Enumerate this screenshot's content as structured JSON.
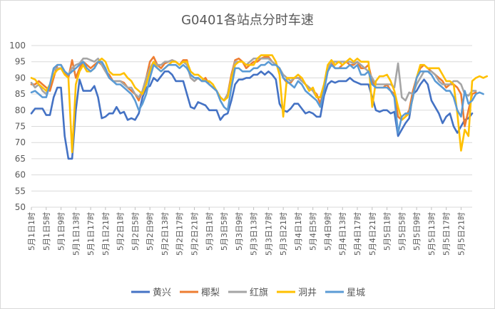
{
  "chart_data": {
    "type": "line",
    "title": "G0401各站点分时车速",
    "xlabel": "",
    "ylabel": "",
    "ylim": [
      50,
      100
    ],
    "y_ticks": [
      50,
      55,
      60,
      65,
      70,
      75,
      80,
      85,
      90,
      95,
      100
    ],
    "grid": "horizontal",
    "legend_position": "bottom",
    "x_tick_labels": [
      "5月1日1时",
      "5月1日5时",
      "5月1日9时",
      "5月1日13时",
      "5月1日17时",
      "5月1日21时",
      "5月2日1时",
      "5月2日5时",
      "5月2日9时",
      "5月2日13时",
      "5月2日17时",
      "5月2日21时",
      "5月3日1时",
      "5月3日5时",
      "5月3日9时",
      "5月3日13时",
      "5月3日17时",
      "5月3日21时",
      "5月4日1时",
      "5月4日5时",
      "5月4日9时",
      "5月4日13时",
      "5月4日17时",
      "5月4日21时",
      "5月5日1时",
      "5月5日5时",
      "5月5日9时",
      "5月5日13时",
      "5月5日17时",
      "5月5日21时"
    ],
    "series": [
      {
        "name": "黄兴",
        "color": "#4472C4",
        "values": [
          79,
          80.5,
          80.5,
          80.5,
          78.5,
          78.5,
          84,
          87,
          87,
          72,
          65,
          65,
          80,
          89.5,
          86,
          86,
          86,
          87.5,
          84,
          77.5,
          78,
          79,
          79,
          81,
          79,
          79.5,
          77,
          77.5,
          77,
          79,
          84,
          87,
          87.5,
          90,
          89,
          90.5,
          92,
          92,
          91,
          89,
          89,
          89,
          85,
          81,
          80.5,
          82.5,
          82,
          81.5,
          80,
          80,
          80,
          77,
          78.5,
          79,
          83,
          88,
          89.5,
          89.5,
          90,
          90,
          91,
          91,
          92,
          91,
          92,
          91,
          89.5,
          82,
          80,
          79.5,
          80.5,
          82,
          82,
          80.5,
          79,
          79.5,
          79,
          78,
          78,
          84.5,
          88,
          89,
          88.5,
          89,
          89,
          89,
          90,
          89,
          88.5,
          88,
          88,
          88,
          84,
          80,
          79.5,
          80,
          80,
          79,
          79.5,
          72,
          74,
          76,
          77.5,
          85,
          86,
          88,
          89.5,
          88,
          83,
          81,
          79,
          76,
          78,
          79,
          75,
          73,
          75,
          77,
          77.5,
          79
        ]
      },
      {
        "name": "椰梨",
        "color": "#ED7D31",
        "values": [
          88,
          88,
          89,
          88,
          87,
          86,
          90,
          94,
          94,
          92,
          90,
          95.5,
          90,
          93,
          95,
          94,
          93,
          94,
          95,
          94,
          92,
          91,
          89,
          89,
          89,
          88.5,
          87,
          86,
          85,
          83,
          86,
          90,
          95,
          96.5,
          94,
          93,
          94.5,
          95,
          95.5,
          95,
          94,
          95.5,
          95.5,
          90,
          89,
          90,
          89,
          90,
          88,
          87,
          86,
          84,
          83,
          85,
          91,
          95.5,
          96,
          95,
          93,
          94,
          95,
          95,
          96,
          96.5,
          96.5,
          95,
          94,
          93,
          90,
          88.5,
          88.5,
          90,
          90,
          90,
          88,
          87,
          86,
          85,
          82,
          87,
          92,
          94.5,
          93,
          93,
          94,
          95,
          94,
          94,
          95,
          93,
          93,
          94,
          89,
          87,
          87,
          87,
          88,
          86,
          85,
          78,
          77,
          78,
          80,
          86,
          90,
          93,
          94,
          93,
          92,
          91,
          90,
          89,
          87,
          88,
          88,
          87,
          85,
          75,
          80,
          85,
          85.5
        ]
      },
      {
        "name": "红旗",
        "color": "#A5A5A5",
        "values": [
          88.5,
          87,
          88,
          86,
          85,
          88,
          92.5,
          93,
          93,
          92,
          91,
          93,
          94,
          94.5,
          96,
          96,
          95.5,
          95,
          96,
          94,
          92,
          90,
          89,
          89,
          89,
          88,
          87,
          87,
          85,
          84,
          86,
          90,
          93,
          95,
          94,
          94,
          95,
          95,
          95.5,
          95,
          94,
          95,
          94,
          90,
          89,
          90,
          89,
          89,
          88,
          87,
          86,
          84,
          83,
          85,
          90,
          95,
          95,
          95,
          94,
          95,
          96,
          96,
          96,
          96,
          96,
          95,
          94,
          93,
          91,
          90,
          89,
          90,
          90,
          89,
          88,
          87,
          86,
          84,
          84,
          88,
          93,
          95,
          95,
          95,
          95,
          95,
          95,
          94.5,
          95,
          94,
          93,
          92,
          90,
          88,
          88,
          88,
          88,
          88,
          87,
          94.5,
          84,
          83,
          85.5,
          85,
          88,
          90,
          92,
          92,
          92,
          91,
          89,
          88,
          88,
          88,
          89,
          89,
          88,
          85,
          84.5,
          86,
          86
        ]
      },
      {
        "name": "洞井",
        "color": "#FFC000",
        "values": [
          90,
          89.5,
          88,
          87,
          86,
          88,
          91,
          92.5,
          93,
          91,
          90,
          67,
          88,
          92,
          94,
          92,
          92,
          93,
          95,
          96,
          95,
          92,
          91,
          91,
          91,
          91.5,
          90,
          89,
          87,
          86,
          85,
          88,
          92,
          95,
          93,
          92,
          93,
          94,
          95,
          95,
          94,
          95,
          95,
          92,
          91,
          91,
          90,
          89,
          89,
          88,
          86,
          84,
          83,
          84,
          90,
          94,
          95,
          95,
          94,
          94,
          94,
          96,
          97,
          97,
          97,
          97,
          95,
          91,
          78,
          90,
          90,
          90,
          91,
          90,
          88,
          86,
          87,
          84,
          84,
          88,
          94,
          95.5,
          94,
          95,
          94,
          95,
          96,
          95,
          96,
          95,
          95,
          95,
          81,
          89,
          90.5,
          90.5,
          91,
          89,
          86,
          81,
          77,
          78,
          79,
          84,
          90,
          94,
          94,
          93,
          93,
          93,
          93,
          91,
          89,
          89,
          88,
          79,
          67.5,
          74,
          72,
          89,
          90,
          90.5,
          90,
          90.5
        ]
      },
      {
        "name": "星城",
        "color": "#5B9BD5",
        "values": [
          85.5,
          86,
          85,
          84,
          84,
          88,
          93,
          94,
          94,
          92,
          91,
          92,
          93,
          94,
          95,
          93,
          92,
          93,
          95,
          95,
          93,
          90,
          89,
          88,
          88,
          87,
          86,
          85,
          83,
          80,
          82,
          85,
          90,
          94,
          93,
          92,
          93,
          94,
          94,
          94,
          93,
          94,
          93,
          91,
          90,
          90,
          89,
          89,
          88,
          87,
          86,
          83,
          81,
          80,
          87,
          93,
          93,
          92,
          92,
          92,
          93,
          93,
          94,
          94,
          95,
          94,
          94,
          93,
          90,
          89,
          88,
          87,
          89,
          88,
          86,
          85,
          84,
          83,
          81,
          86,
          92,
          94,
          93,
          93,
          93,
          93,
          94,
          93,
          94,
          91,
          91,
          92,
          88,
          87,
          87,
          87,
          87,
          86,
          84,
          73,
          78,
          79,
          79,
          84,
          90,
          92,
          92,
          92,
          91,
          89,
          88,
          87,
          86,
          86,
          84,
          80,
          78,
          86,
          82,
          83,
          85,
          85.5,
          85
        ]
      }
    ]
  }
}
